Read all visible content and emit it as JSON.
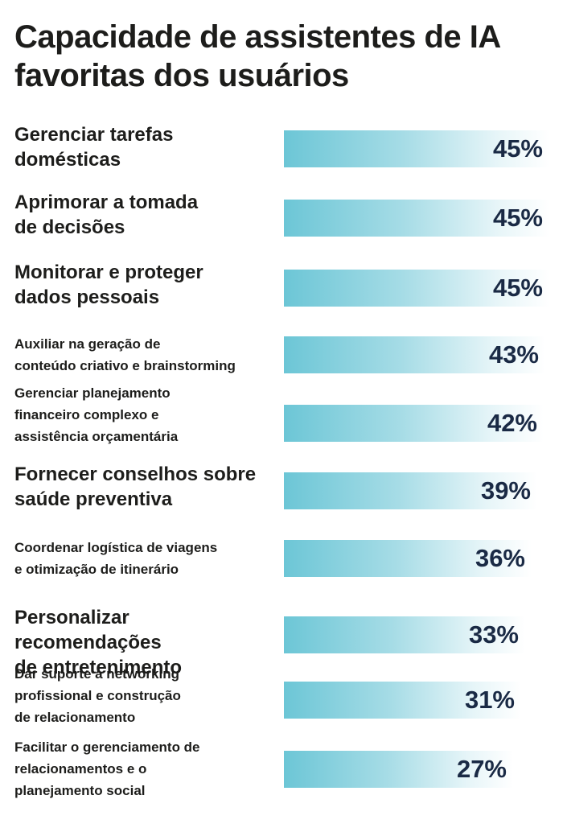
{
  "chart_data": {
    "type": "bar",
    "orientation": "horizontal",
    "title": "Capacidade de assistentes de IA favoritas dos usuários",
    "categories": [
      "Gerenciar tarefas\ndomésticas",
      "Aprimorar a tomada\nde decisões",
      "Monitorar e proteger\ndados pessoais",
      "Auxiliar na geração de\nconteúdo criativo e brainstorming",
      "Gerenciar planejamento\nfinanceiro complexo e\nassistência orçamentária",
      "Fornecer conselhos sobre\nsaúde preventiva",
      "Coordenar logística de viagens\ne otimização de itinerário",
      "Personalizar recomendações\nde entretenimento",
      "Dar suporte a networking\nprofissional e construção\nde relacionamento",
      "Facilitar o gerenciamento de\nrelacionamentos e o\nplanejamento social"
    ],
    "values": [
      45,
      45,
      45,
      43,
      42,
      39,
      36,
      33,
      31,
      27
    ],
    "value_labels": [
      "45%",
      "45%",
      "45%",
      "43%",
      "42%",
      "39%",
      "36%",
      "33%",
      "31%",
      "27%"
    ],
    "label_sizes": [
      "big",
      "big",
      "big",
      "small",
      "small",
      "big",
      "small",
      "big",
      "small",
      "small"
    ],
    "xlim": [
      0,
      45
    ],
    "bar_color": "#6cc6d6",
    "value_color": "#1a2a45",
    "label_color": "#1d1d1b"
  }
}
